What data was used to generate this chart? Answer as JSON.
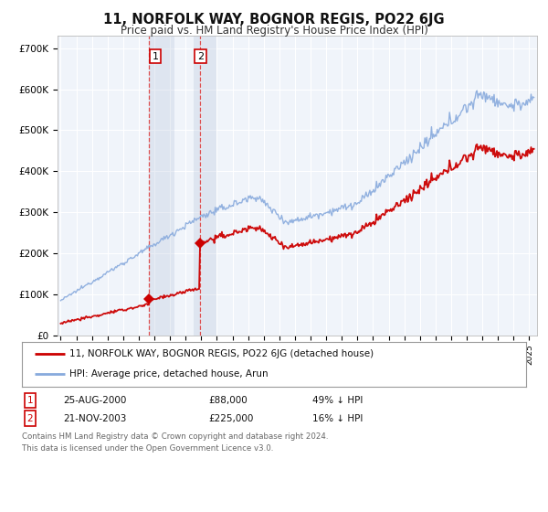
{
  "title": "11, NORFOLK WAY, BOGNOR REGIS, PO22 6JG",
  "subtitle": "Price paid vs. HM Land Registry's House Price Index (HPI)",
  "background_color": "#ffffff",
  "plot_bg_color": "#f8f8f8",
  "grid_color": "#cccccc",
  "hpi_color": "#88aadd",
  "price_color": "#cc0000",
  "ylim": [
    0,
    730000
  ],
  "yticks": [
    0,
    100000,
    200000,
    300000,
    400000,
    500000,
    600000,
    700000
  ],
  "ytick_labels": [
    "£0",
    "£100K",
    "£200K",
    "£300K",
    "£400K",
    "£500K",
    "£600K",
    "£700K"
  ],
  "sale1_year": 2000.65,
  "sale1_price": 88000,
  "sale2_year": 2003.9,
  "sale2_price": 225000,
  "shade1_x_start": 2000.65,
  "shade1_x_end": 2002.3,
  "shade2_x_start": 2003.5,
  "shade2_x_end": 2005.0,
  "legend_line1": "11, NORFOLK WAY, BOGNOR REGIS, PO22 6JG (detached house)",
  "legend_line2": "HPI: Average price, detached house, Arun",
  "table_row1": [
    "1",
    "25-AUG-2000",
    "£88,000",
    "49% ↓ HPI"
  ],
  "table_row2": [
    "2",
    "21-NOV-2003",
    "£225,000",
    "16% ↓ HPI"
  ],
  "footnote": "Contains HM Land Registry data © Crown copyright and database right 2024.\nThis data is licensed under the Open Government Licence v3.0.",
  "xlim_start": 1994.8,
  "xlim_end": 2025.5
}
